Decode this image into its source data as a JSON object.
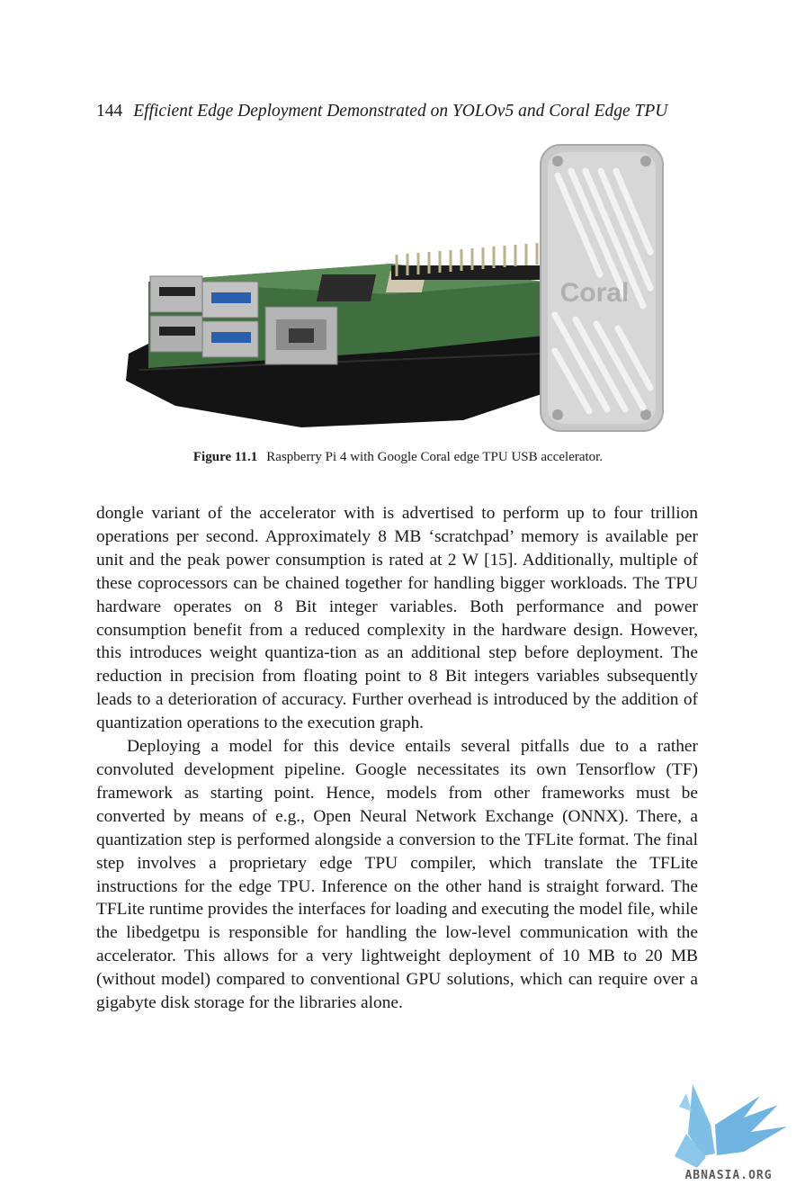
{
  "header": {
    "page_number": "144",
    "title": "Efficient Edge Deployment Demonstrated on YOLOv5 and Coral Edge TPU"
  },
  "figure": {
    "label": "Figure 11.1",
    "caption": "Raspberry Pi 4 with Google Coral edge TPU USB accelerator.",
    "device_logo": "Coral"
  },
  "paragraphs": [
    "dongle variant of the accelerator with is advertised to perform up to four trillion operations per second. Approximately 8 MB ‘scratchpad’ memory is available per unit and the peak power consumption is rated at 2 W [15]. Additionally, multiple of these coprocessors can be chained together for handling bigger workloads. The TPU hardware operates on 8 Bit integer variables. Both performance and power consumption benefit from a reduced complexity in the hardware design. However, this introduces weight quantiza-tion as an additional step before deployment. The reduction in precision from floating point to 8 Bit integers variables subsequently leads to a deterioration of accuracy. Further overhead is introduced by the addition of quantization operations to the execution graph.",
    "Deploying a model for this device entails several pitfalls due to a rather convoluted development pipeline. Google necessitates its own Tensorflow (TF) framework as starting point. Hence, models from other frameworks must be converted by means of e.g., Open Neural Network Exchange (ONNX). There, a quantization step is performed alongside a conversion to the TFLite format. The final step involves a proprietary edge TPU compiler, which translate the TFLite instructions for the edge TPU. Inference on the other hand is straight forward. The TFLite runtime provides the interfaces for loading and executing the model file, while the libedgetpu is responsible for handling the low-level communication with the accelerator. This allows for a very lightweight deployment of 10 MB to 20 MB (without model) compared to conventional GPU solutions, which can require over a gigabyte disk storage for the libraries alone."
  ],
  "watermark": {
    "text": "ABNASIA.ORG"
  }
}
